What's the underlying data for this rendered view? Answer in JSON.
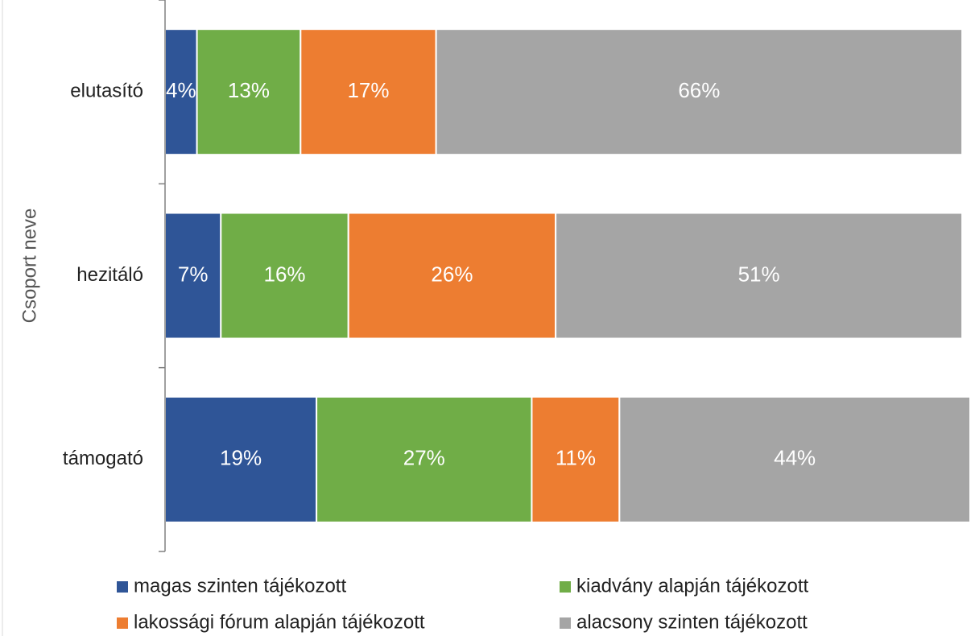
{
  "chart_data": {
    "type": "stacked_bar_horizontal",
    "y_axis_label": "Csoport neve",
    "categories": [
      "elutasító",
      "hezitáló",
      "támogató"
    ],
    "series": [
      {
        "name": "magas szinten tájékozott",
        "color": "#2f5597",
        "values": [
          4,
          7,
          19
        ],
        "value_labels": [
          "4%",
          "7%",
          "19%"
        ]
      },
      {
        "name": "kiadvány alapján tájékozott",
        "color": "#70ad47",
        "values": [
          13,
          16,
          27
        ],
        "value_labels": [
          "13%",
          "16%",
          "27%"
        ]
      },
      {
        "name": "lakossági fórum alapján tájékozott",
        "color": "#ed7d31",
        "values": [
          17,
          26,
          11
        ],
        "value_labels": [
          "17%",
          "26%",
          "11%"
        ]
      },
      {
        "name": "alacsony szinten tájékozott",
        "color": "#a5a5a5",
        "values": [
          66,
          51,
          44
        ],
        "value_labels": [
          "66%",
          "51%",
          "44%"
        ]
      }
    ],
    "xlim": [
      0,
      101
    ]
  }
}
